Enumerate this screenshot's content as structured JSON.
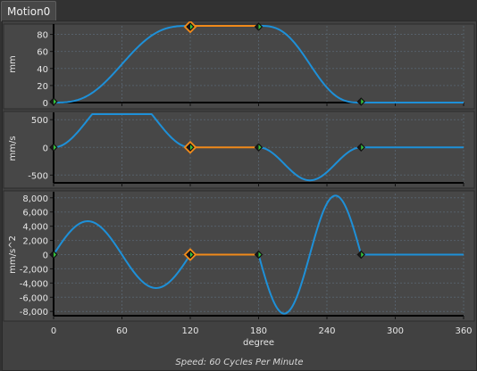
{
  "tab": {
    "label": "Motion0"
  },
  "footer": {
    "speed_text": "Speed: 60 Cycles Per Minute"
  },
  "colors": {
    "curve": "#1e90d8",
    "dwell": "#f08a1a",
    "panel": "#474747",
    "grid": "#56606a",
    "axis": "#000000"
  },
  "chart_data": {
    "type": "line",
    "x": {
      "label": "degree",
      "range": [
        0,
        360
      ],
      "ticks": [
        0,
        60,
        120,
        180,
        240,
        300,
        360
      ]
    },
    "segments": [
      {
        "from": 0,
        "to": 120,
        "kind": "motion"
      },
      {
        "from": 120,
        "to": 180,
        "kind": "dwell"
      },
      {
        "from": 180,
        "to": 270,
        "kind": "motion"
      },
      {
        "from": 270,
        "to": 360,
        "kind": "dwell"
      }
    ],
    "keypoints_x": [
      0,
      120,
      180,
      270
    ],
    "selected_keypoint_x": 120,
    "plots": [
      {
        "name": "position",
        "ylabel": "mm",
        "yrange": [
          0,
          90
        ],
        "ticks": [
          {
            "v": 0,
            "label": "0"
          },
          {
            "v": 20,
            "label": "20"
          },
          {
            "v": 40,
            "label": "40"
          },
          {
            "v": 60,
            "label": "60"
          },
          {
            "v": 80,
            "label": "80"
          }
        ]
      },
      {
        "name": "velocity",
        "ylabel": "mm/s",
        "yrange": [
          -640,
          600
        ],
        "ticks": [
          {
            "v": -500,
            "label": "-500"
          },
          {
            "v": 0,
            "label": "0"
          },
          {
            "v": 500,
            "label": "500"
          }
        ]
      },
      {
        "name": "acceleration",
        "ylabel": "mm/s^2",
        "yrange": [
          -8600,
          8600
        ],
        "ticks": [
          {
            "v": -8000,
            "label": "-8,000"
          },
          {
            "v": -6000,
            "label": "-6,000"
          },
          {
            "v": -4000,
            "label": "-4,000"
          },
          {
            "v": -2000,
            "label": "-2,000"
          },
          {
            "v": 0,
            "label": "0"
          },
          {
            "v": 2000,
            "label": "2,000"
          },
          {
            "v": 4000,
            "label": "4,000"
          },
          {
            "v": 6000,
            "label": "6,000"
          },
          {
            "v": 8000,
            "label": "8,000"
          }
        ]
      }
    ]
  }
}
